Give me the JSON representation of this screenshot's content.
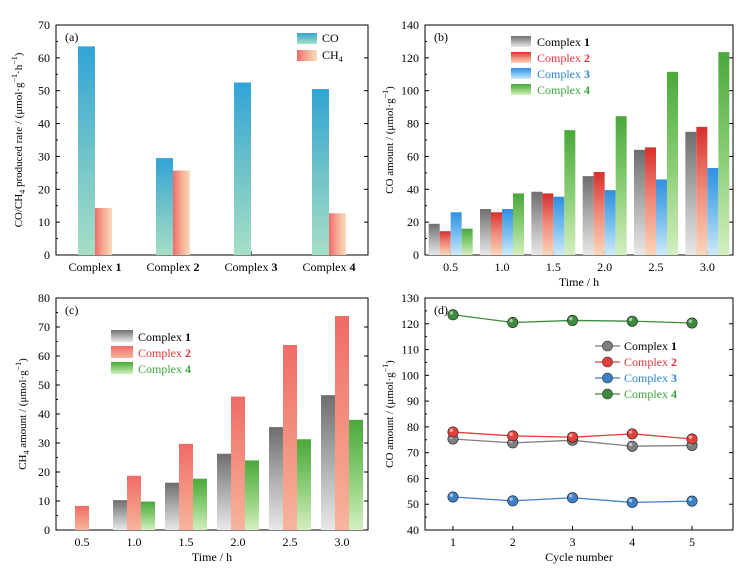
{
  "chart_data": [
    {
      "panel": "(a)",
      "type": "bar",
      "ylabel_parts": [
        "CO/CH",
        "4",
        " produced rate / (μmol·g",
        "−1",
        "·h",
        "−1",
        ")"
      ],
      "categories": [
        {
          "text": "Complex ",
          "num": "1"
        },
        {
          "text": "Complex ",
          "num": "2"
        },
        {
          "text": "Complex ",
          "num": "3"
        },
        {
          "text": "Complex ",
          "num": "4"
        }
      ],
      "series": [
        {
          "name": "CO",
          "values": [
            63.5,
            29.5,
            52.5,
            50.5
          ]
        },
        {
          "name": "CH4",
          "legend_base": "CH",
          "legend_sub": "4",
          "values": [
            14.3,
            25.7,
            null,
            12.7
          ]
        }
      ],
      "ylim": [
        0,
        70
      ],
      "yticks": [
        "0",
        "10",
        "20",
        "30",
        "40",
        "50",
        "60",
        "70"
      ],
      "legend_position": "top-right"
    },
    {
      "panel": "(b)",
      "type": "bar",
      "xlabel": "Time / h",
      "ylabel": "CO amount / (μmol·g",
      "ylabel_sup": "−1",
      "ylabel_tail": ")",
      "categories": [
        "0.5",
        "1.0",
        "1.5",
        "2.0",
        "2.5",
        "3.0"
      ],
      "series": [
        {
          "name": "Complex ",
          "num": "1",
          "values": [
            19,
            28,
            38.5,
            48,
            64,
            75
          ]
        },
        {
          "name": "Complex ",
          "num": "2",
          "values": [
            14.5,
            26,
            37.5,
            50.5,
            65.5,
            78
          ]
        },
        {
          "name": "Complex ",
          "num": "3",
          "values": [
            26,
            28,
            35.5,
            39.5,
            46,
            53
          ]
        },
        {
          "name": "Complex ",
          "num": "4",
          "values": [
            16,
            37.5,
            76,
            84.5,
            111.5,
            123.5
          ]
        }
      ],
      "ylim": [
        0,
        140
      ],
      "yticks": [
        "0",
        "20",
        "40",
        "60",
        "80",
        "100",
        "120",
        "140"
      ],
      "legend_position": "top-left"
    },
    {
      "panel": "(c)",
      "type": "bar",
      "xlabel": "Time / h",
      "ylabel_parts": [
        "CH",
        "4",
        " amount / (μmol·g",
        "−1",
        ")"
      ],
      "categories": [
        "0.5",
        "1.0",
        "1.5",
        "2.0",
        "2.5",
        "3.0"
      ],
      "series": [
        {
          "name": "Complex ",
          "num": "1",
          "values": [
            null,
            10.3,
            16.3,
            26.3,
            35.5,
            46.5
          ]
        },
        {
          "name": "Complex ",
          "num": "2",
          "values": [
            8.3,
            18.7,
            29.7,
            46,
            63.8,
            73.8
          ]
        },
        {
          "name": "Complex ",
          "num": "4",
          "values": [
            null,
            9.8,
            17.7,
            24,
            31.3,
            38
          ]
        }
      ],
      "ylim": [
        0,
        80
      ],
      "yticks": [
        "0",
        "10",
        "20",
        "30",
        "40",
        "50",
        "60",
        "70",
        "80"
      ],
      "legend_position": "top-left"
    },
    {
      "panel": "(d)",
      "type": "line",
      "xlabel": "Cycle number",
      "ylabel": "CO amount / (μmol·g",
      "ylabel_sup": "−1",
      "ylabel_tail": ")",
      "x": [
        1,
        2,
        3,
        4,
        5
      ],
      "xticks": [
        "1",
        "2",
        "3",
        "4",
        "5"
      ],
      "series": [
        {
          "name": "Complex ",
          "num": "1",
          "values": [
            75.3,
            73.8,
            74.8,
            72.5,
            72.8
          ]
        },
        {
          "name": "Complex ",
          "num": "2",
          "values": [
            78,
            76.5,
            76,
            77.3,
            75.3
          ]
        },
        {
          "name": "Complex ",
          "num": "3",
          "values": [
            52.8,
            51.3,
            52.5,
            50.7,
            51.2
          ]
        },
        {
          "name": "Complex ",
          "num": "4",
          "values": [
            123.5,
            120.5,
            121.3,
            121,
            120.3
          ]
        }
      ],
      "ylim": [
        40,
        130
      ],
      "yticks": [
        "40",
        "50",
        "60",
        "70",
        "80",
        "90",
        "100",
        "110",
        "120",
        "130"
      ],
      "legend_position": "center-right"
    }
  ],
  "colors": {
    "co_bar": "#3aa6d6",
    "ch4_bar": "#f07a70",
    "complex1": "#7f7f7f",
    "complex2": "#e3403c",
    "complex3": "#3d7fc6",
    "complex4": "#3e8b3e",
    "bar1": "#858585",
    "bar2": "#e23b36",
    "bar3": "#2f8fe0",
    "bar4": "#59b44a",
    "legend_text2": "#e2343a",
    "legend_text3": "#2a84d9",
    "legend_text4": "#3aa63a"
  }
}
